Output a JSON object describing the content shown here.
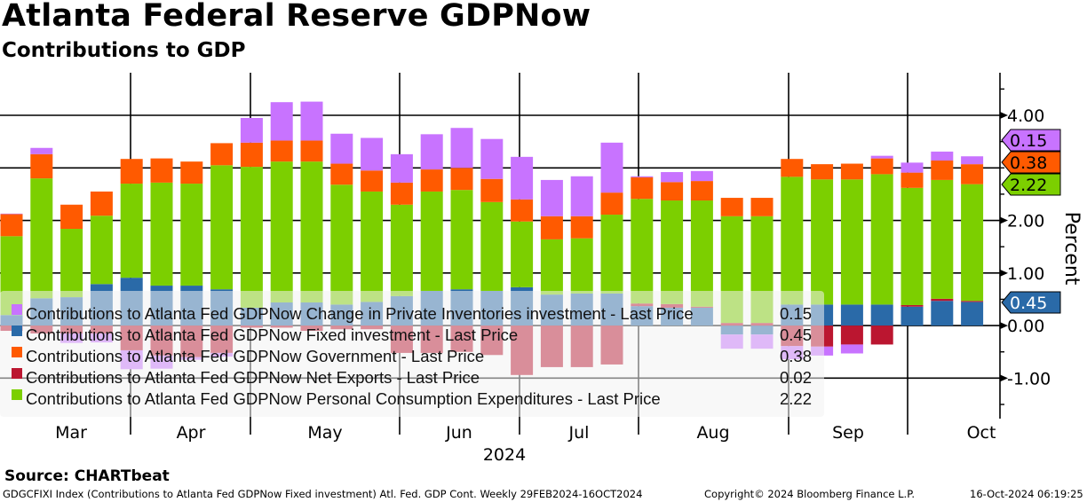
{
  "header": {
    "title": "Atlanta Federal Reserve GDPNow",
    "subtitle": "Contributions to GDP"
  },
  "footer": {
    "source": "Source: CHARTbeat",
    "description": "GDGCFIXI Index (Contributions to Atlanta Fed GDPNow Fixed investment) Atl. Fed. GDP Cont.  Weekly 29FEB2024-16OCT2024",
    "copyright": "Copyright© 2024 Bloomberg Finance L.P.",
    "timestamp": "16-Oct-2024 06:19:25"
  },
  "chart_data": {
    "type": "bar",
    "stacked": true,
    "title": "Atlanta Federal Reserve GDPNow",
    "subtitle": "Contributions to GDP",
    "ylabel": "Percent",
    "xlabel": "2024",
    "ylim": [
      -1.77,
      4.81
    ],
    "y_ticks": [
      {
        "value": 4,
        "label": "4.00"
      },
      {
        "value": 2,
        "label": "2.00"
      },
      {
        "value": 1,
        "label": "1.00"
      },
      {
        "value": 0,
        "label": "0.00"
      },
      {
        "value": -1,
        "label": "-1.00"
      }
    ],
    "x_month_labels": [
      "Mar",
      "Apr",
      "May",
      "Jun",
      "Jul",
      "Aug",
      "Sep",
      "Oct"
    ],
    "year_label": "2024",
    "grid": true,
    "legend_placement": "bottom-left",
    "series": [
      {
        "key": "fixed",
        "name": "Contributions to Atlanta Fed GDPNow Fixed investment - Last Price",
        "last": "0.45",
        "color": "#2a6aa8",
        "values": [
          0.2,
          0.52,
          0.54,
          0.79,
          0.91,
          0.76,
          0.76,
          0.69,
          0.34,
          0.44,
          0.44,
          0.4,
          0.45,
          0.56,
          0.66,
          0.69,
          0.66,
          0.73,
          0.59,
          0.61,
          0.61,
          0.37,
          0.34,
          0.34,
          -0.17,
          -0.17,
          0.4,
          0.4,
          0.4,
          0.4,
          0.36,
          0.47,
          0.45
        ]
      },
      {
        "key": "netexp",
        "name": "Contributions to Atlanta Fed GDPNow Net Exports - Last Price",
        "last": "0.02",
        "color": "#bb1630",
        "values": [
          -0.1,
          -0.15,
          -0.15,
          -0.15,
          -0.47,
          -0.57,
          -0.6,
          -0.52,
          -0.04,
          -0.04,
          -0.1,
          -0.07,
          -0.07,
          -0.52,
          -0.52,
          -0.5,
          -0.56,
          -0.94,
          -0.79,
          -0.79,
          -0.74,
          0.05,
          0.07,
          0.02,
          0.05,
          0.05,
          -0.39,
          -0.4,
          -0.36,
          -0.36,
          0.03,
          0.04,
          0.02
        ]
      },
      {
        "key": "pce",
        "name": "Contributions to Atlanta Fed GDPNow Personal Consumption Expenditures - Last Price",
        "last": "2.22",
        "color": "#7ccf00",
        "values": [
          1.5,
          2.28,
          1.3,
          1.3,
          1.79,
          1.96,
          1.94,
          2.36,
          2.68,
          2.68,
          2.68,
          2.28,
          2.1,
          1.74,
          1.89,
          1.89,
          1.69,
          1.25,
          1.05,
          1.05,
          1.5,
          1.99,
          1.97,
          2.02,
          2.03,
          2.03,
          2.43,
          2.38,
          2.38,
          2.48,
          2.23,
          2.26,
          2.22
        ]
      },
      {
        "key": "gov",
        "name": "Contributions to Atlanta Fed GDPNow Government - Last Price",
        "last": "0.38",
        "color": "#ff5a00",
        "values": [
          0.42,
          0.46,
          0.46,
          0.46,
          0.47,
          0.46,
          0.42,
          0.42,
          0.46,
          0.4,
          0.4,
          0.4,
          0.4,
          0.42,
          0.42,
          0.42,
          0.44,
          0.42,
          0.44,
          0.42,
          0.42,
          0.41,
          0.35,
          0.37,
          0.35,
          0.35,
          0.34,
          0.29,
          0.3,
          0.3,
          0.29,
          0.37,
          0.38
        ]
      },
      {
        "key": "inv",
        "name": "Contributions to Atlanta Fed GDPNow Change in Private Inventories investment - Last Price",
        "last": "0.15",
        "color": "#c873ff",
        "values": [
          0.01,
          0.12,
          -0.18,
          -0.17,
          -0.36,
          -0.25,
          -0.05,
          -0.07,
          0.47,
          0.73,
          0.74,
          0.57,
          0.62,
          0.54,
          0.67,
          0.76,
          0.76,
          0.81,
          0.69,
          0.76,
          0.95,
          0.02,
          0.19,
          0.19,
          -0.27,
          -0.27,
          -0.25,
          -0.17,
          -0.17,
          0.05,
          0.19,
          0.17,
          0.15
        ]
      }
    ],
    "legend_order": [
      "inv",
      "fixed",
      "gov",
      "netexp",
      "pce"
    ]
  }
}
